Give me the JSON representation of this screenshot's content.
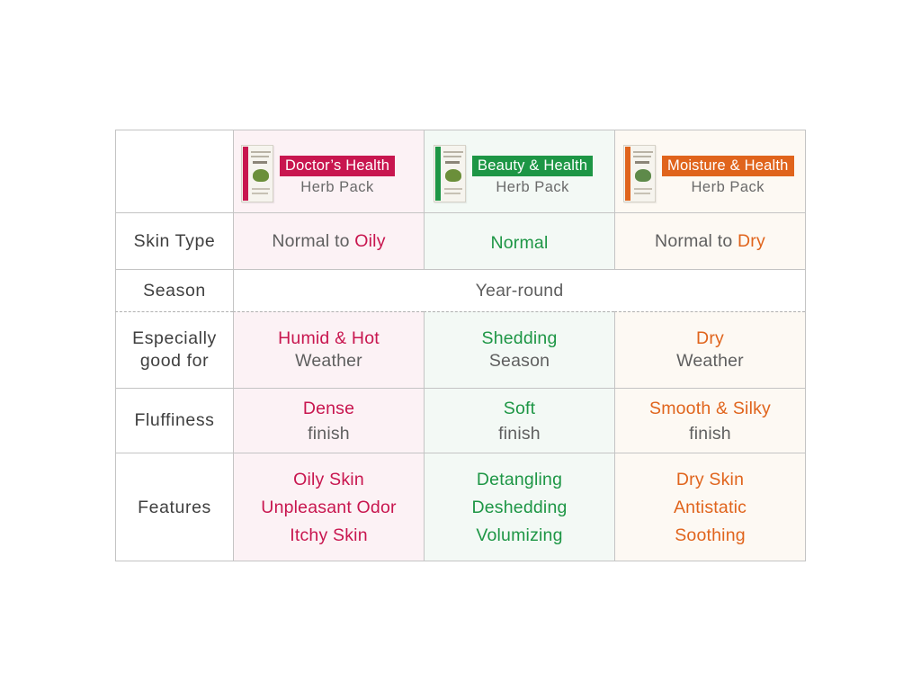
{
  "colors": {
    "pink": "#c8164f",
    "green": "#1d9645",
    "orange": "#e0641c",
    "neutral": "#5f5f5f"
  },
  "products": [
    {
      "name": "Doctor’s Health",
      "type": "Herb Pack",
      "color": "#c8164f",
      "icon": "herb-pack-package-icon"
    },
    {
      "name": "Beauty & Health",
      "type": "Herb Pack",
      "color": "#1d9645",
      "icon": "herb-pack-package-icon"
    },
    {
      "name": "Moisture & Health",
      "type": "Herb Pack",
      "color": "#e0641c",
      "icon": "herb-pack-package-icon"
    }
  ],
  "rows": {
    "skin_type": {
      "label": "Skin Type",
      "values": [
        {
          "prefix": "Normal to ",
          "highlight": "Oily"
        },
        {
          "prefix": "",
          "highlight": "Normal"
        },
        {
          "prefix": "Normal to ",
          "highlight": "Dry"
        }
      ]
    },
    "season": {
      "label": "Season",
      "value": "Year-round"
    },
    "especially": {
      "label_line1": "Especially",
      "label_line2": "good for",
      "values": [
        {
          "highlight": "Humid & Hot",
          "rest": "Weather"
        },
        {
          "highlight": "Shedding",
          "rest": "Season"
        },
        {
          "highlight": "Dry",
          "rest": "Weather"
        }
      ]
    },
    "fluffiness": {
      "label": "Fluffiness",
      "values": [
        {
          "highlight": "Dense",
          "rest": "finish"
        },
        {
          "highlight": "Soft",
          "rest": "finish"
        },
        {
          "highlight": "Smooth & Silky",
          "rest": "finish"
        }
      ]
    },
    "features": {
      "label": "Features",
      "values": [
        [
          "Oily Skin",
          "Unpleasant Odor",
          "Itchy Skin"
        ],
        [
          "Detangling",
          "Deshedding",
          "Volumizing"
        ],
        [
          "Dry Skin",
          "Antistatic",
          "Soothing"
        ]
      ]
    }
  }
}
